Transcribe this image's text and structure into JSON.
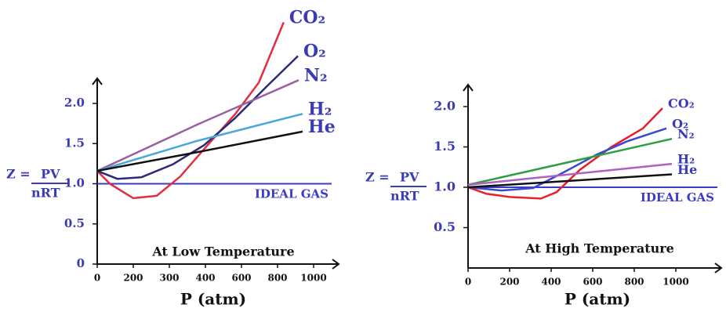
{
  "chart_data": [
    {
      "type": "line",
      "xlabel": "P (atm)",
      "caption": "At Low Temperature",
      "ylabel": {
        "lhs": "Z =",
        "numerator": "PV",
        "denominator": "nRT"
      },
      "reference_line": {
        "label": "IDEAL GAS",
        "value": 1
      },
      "xlim": [
        0,
        1100
      ],
      "xticks": [
        0,
        200,
        300,
        400,
        600,
        800,
        1000
      ],
      "ylim": [
        0,
        2.3
      ],
      "yticks": [
        0,
        0.5,
        {
          "value": 1,
          "label": "1.0"
        },
        1.5,
        {
          "value": 2,
          "label": "2.0"
        }
      ],
      "series": [
        {
          "name": "CO₂",
          "color": "#de3040",
          "x": [
            0,
            70,
            200,
            265,
            330,
            396,
            566,
            696,
            834
          ],
          "values": [
            1.16,
            1.0,
            0.82,
            0.85,
            1.09,
            1.43,
            1.87,
            2.26,
            3.01
          ]
        },
        {
          "name": "O₂",
          "color": "#2b2a78",
          "x": [
            0,
            113,
            222,
            309,
            396,
            566,
            739,
            913
          ],
          "values": [
            1.16,
            1.06,
            1.08,
            1.24,
            1.48,
            1.82,
            2.21,
            2.59
          ]
        },
        {
          "name": "N₂",
          "color": "#9a5ea2",
          "x": [
            0,
            374,
            917
          ],
          "values": [
            1.16,
            1.73,
            2.29
          ]
        },
        {
          "name": "H₂",
          "color": "#4aa8d8",
          "x": [
            0,
            374,
            939
          ],
          "values": [
            1.16,
            1.53,
            1.87
          ]
        },
        {
          "name": "He",
          "color": "#111111",
          "x": [
            0,
            374,
            939
          ],
          "values": [
            1.16,
            1.39,
            1.65
          ]
        }
      ]
    },
    {
      "type": "line",
      "xlabel": "P (atm)",
      "caption": "At High Temperature",
      "ylabel": {
        "lhs": "Z =",
        "numerator": "PV",
        "denominator": "nRT"
      },
      "reference_line": {
        "label": "IDEAL GAS",
        "value": 1
      },
      "xlim": [
        0,
        1200
      ],
      "xticks": [
        0,
        200,
        400,
        600,
        800,
        1000
      ],
      "ylim": [
        0,
        2.2
      ],
      "yticks": [
        0.5,
        {
          "value": 1,
          "label": "1.0"
        },
        1.5,
        {
          "value": 2,
          "label": "2.0"
        }
      ],
      "series": [
        {
          "name": "CO₂",
          "color": "#e8202a",
          "x": [
            0,
            87,
            200,
            351,
            426,
            540,
            690,
            842,
            936
          ],
          "values": [
            1.0,
            0.92,
            0.88,
            0.86,
            0.94,
            1.22,
            1.5,
            1.73,
            1.98
          ]
        },
        {
          "name": "O₂",
          "color": "#3a4ad0",
          "x": [
            0,
            162,
            313,
            464,
            615,
            766,
            955
          ],
          "values": [
            1.0,
            0.96,
            0.99,
            1.19,
            1.4,
            1.57,
            1.73
          ]
        },
        {
          "name": "N₂",
          "color": "#2ca040",
          "x": [
            0,
            981
          ],
          "values": [
            1.03,
            1.6
          ]
        },
        {
          "name": "H₂",
          "color": "#b060c0",
          "x": [
            0,
            981
          ],
          "values": [
            1.03,
            1.29
          ]
        },
        {
          "name": "He",
          "color": "#111111",
          "x": [
            0,
            981
          ],
          "values": [
            1.0,
            1.16
          ]
        }
      ]
    }
  ]
}
